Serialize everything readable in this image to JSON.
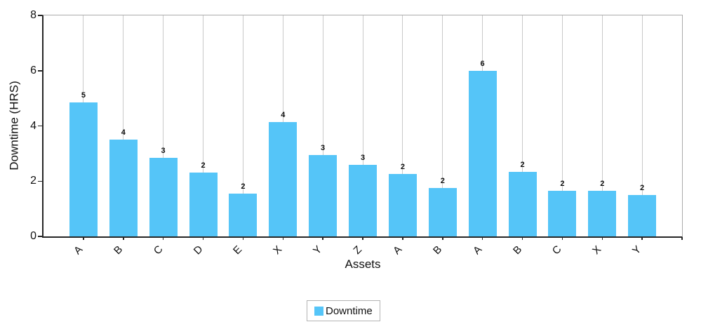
{
  "chart_data": {
    "type": "bar",
    "title": "",
    "xlabel": "Assets",
    "ylabel": "Downtime (HRS)",
    "categories": [
      "A",
      "B",
      "C",
      "D",
      "E",
      "X",
      "Y",
      "Z",
      "A",
      "B",
      "A",
      "B",
      "C",
      "X",
      "Y"
    ],
    "values": [
      4.85,
      3.5,
      2.85,
      2.3,
      1.55,
      4.15,
      2.95,
      2.6,
      2.25,
      1.75,
      6.0,
      2.35,
      1.65,
      1.65,
      1.5
    ],
    "bar_value_labels": [
      "5",
      "4",
      "3",
      "2",
      "2",
      "4",
      "3",
      "3",
      "2",
      "2",
      "6",
      "2",
      "2",
      "2",
      "2"
    ],
    "ylim": [
      0,
      8
    ],
    "yticks": [
      "0",
      "2",
      "4",
      "6",
      "8"
    ],
    "grid": "vertical-only",
    "legend": {
      "position": "bottom-center",
      "entries": [
        {
          "label": "Downtime",
          "color": "#55c5f8"
        }
      ]
    },
    "series": [
      {
        "name": "Downtime",
        "color": "#55c5f8"
      }
    ]
  },
  "colors": {
    "bar": "#55c5f8",
    "gridline": "#c9c9c9",
    "axis": "#262626",
    "outer_border": "#ababab",
    "text": "#111111",
    "background": "#ffffff"
  }
}
